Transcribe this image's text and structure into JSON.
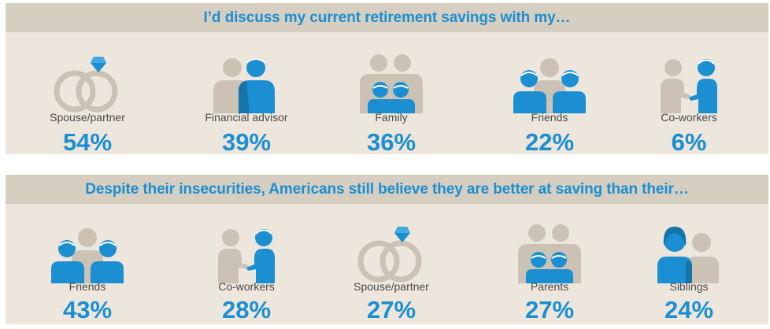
{
  "colors": {
    "panel_bg": "#ece6dc",
    "title_bar_bg": "#d6cec1",
    "accent_blue": "#1b8fd2",
    "person_beige": "#cbc1b5",
    "label_gray": "#4a4a4a"
  },
  "sections": [
    {
      "title": "I’d discuss my current retirement savings with my…",
      "items": [
        {
          "label": "Spouse/partner",
          "value": "54%",
          "icon": "rings-icon"
        },
        {
          "label": "Financial advisor",
          "value": "39%",
          "icon": "advisor-icon"
        },
        {
          "label": "Family",
          "value": "36%",
          "icon": "family-icon"
        },
        {
          "label": "Friends",
          "value": "22%",
          "icon": "friends-icon"
        },
        {
          "label": "Co-workers",
          "value": "6%",
          "icon": "handshake-icon"
        }
      ]
    },
    {
      "title": "Despite their insecurities, Americans still believe they are better at saving than their…",
      "items": [
        {
          "label": "Friends",
          "value": "43%",
          "icon": "friends-icon"
        },
        {
          "label": "Co-workers",
          "value": "28%",
          "icon": "handshake-icon"
        },
        {
          "label": "Spouse/partner",
          "value": "27%",
          "icon": "rings-icon"
        },
        {
          "label": "Parents",
          "value": "27%",
          "icon": "family-icon"
        },
        {
          "label": "Siblings",
          "value": "24%",
          "icon": "siblings-icon"
        }
      ]
    }
  ]
}
